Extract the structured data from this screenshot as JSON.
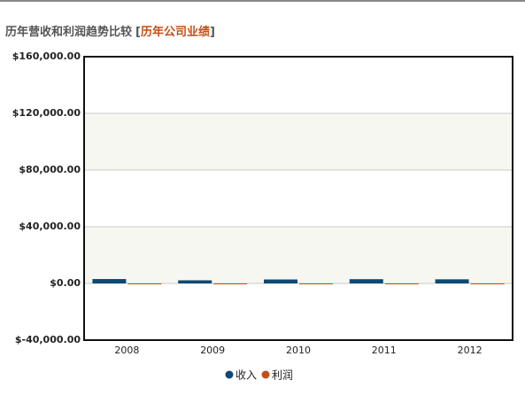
{
  "chart_data": {
    "type": "bar",
    "title": "历年营收和利润趋势比较",
    "link_open": "[",
    "link": "历年公司业绩",
    "link_close": "]",
    "categories": [
      "2008",
      "2009",
      "2010",
      "2011",
      "2012"
    ],
    "series": [
      {
        "name": "收入",
        "color": "#0d4a73",
        "values": [
          3100,
          2200,
          2800,
          3000,
          2900
        ]
      },
      {
        "name": "利润",
        "color": "#c0501a",
        "values": [
          -600,
          -200,
          -200,
          -200,
          -200
        ]
      }
    ],
    "ylim": [
      -40000,
      160000
    ],
    "yticks": [
      {
        "value": -40000,
        "label": "$-40,000.00"
      },
      {
        "value": 0,
        "label": "$0.00"
      },
      {
        "value": 40000,
        "label": "$40,000.00"
      },
      {
        "value": 80000,
        "label": "$80,000.00"
      },
      {
        "value": 120000,
        "label": "$120,000.00"
      },
      {
        "value": 160000,
        "label": "$160,000.00"
      }
    ],
    "grid": true,
    "alternate_bands": true,
    "legend": "bottom"
  }
}
